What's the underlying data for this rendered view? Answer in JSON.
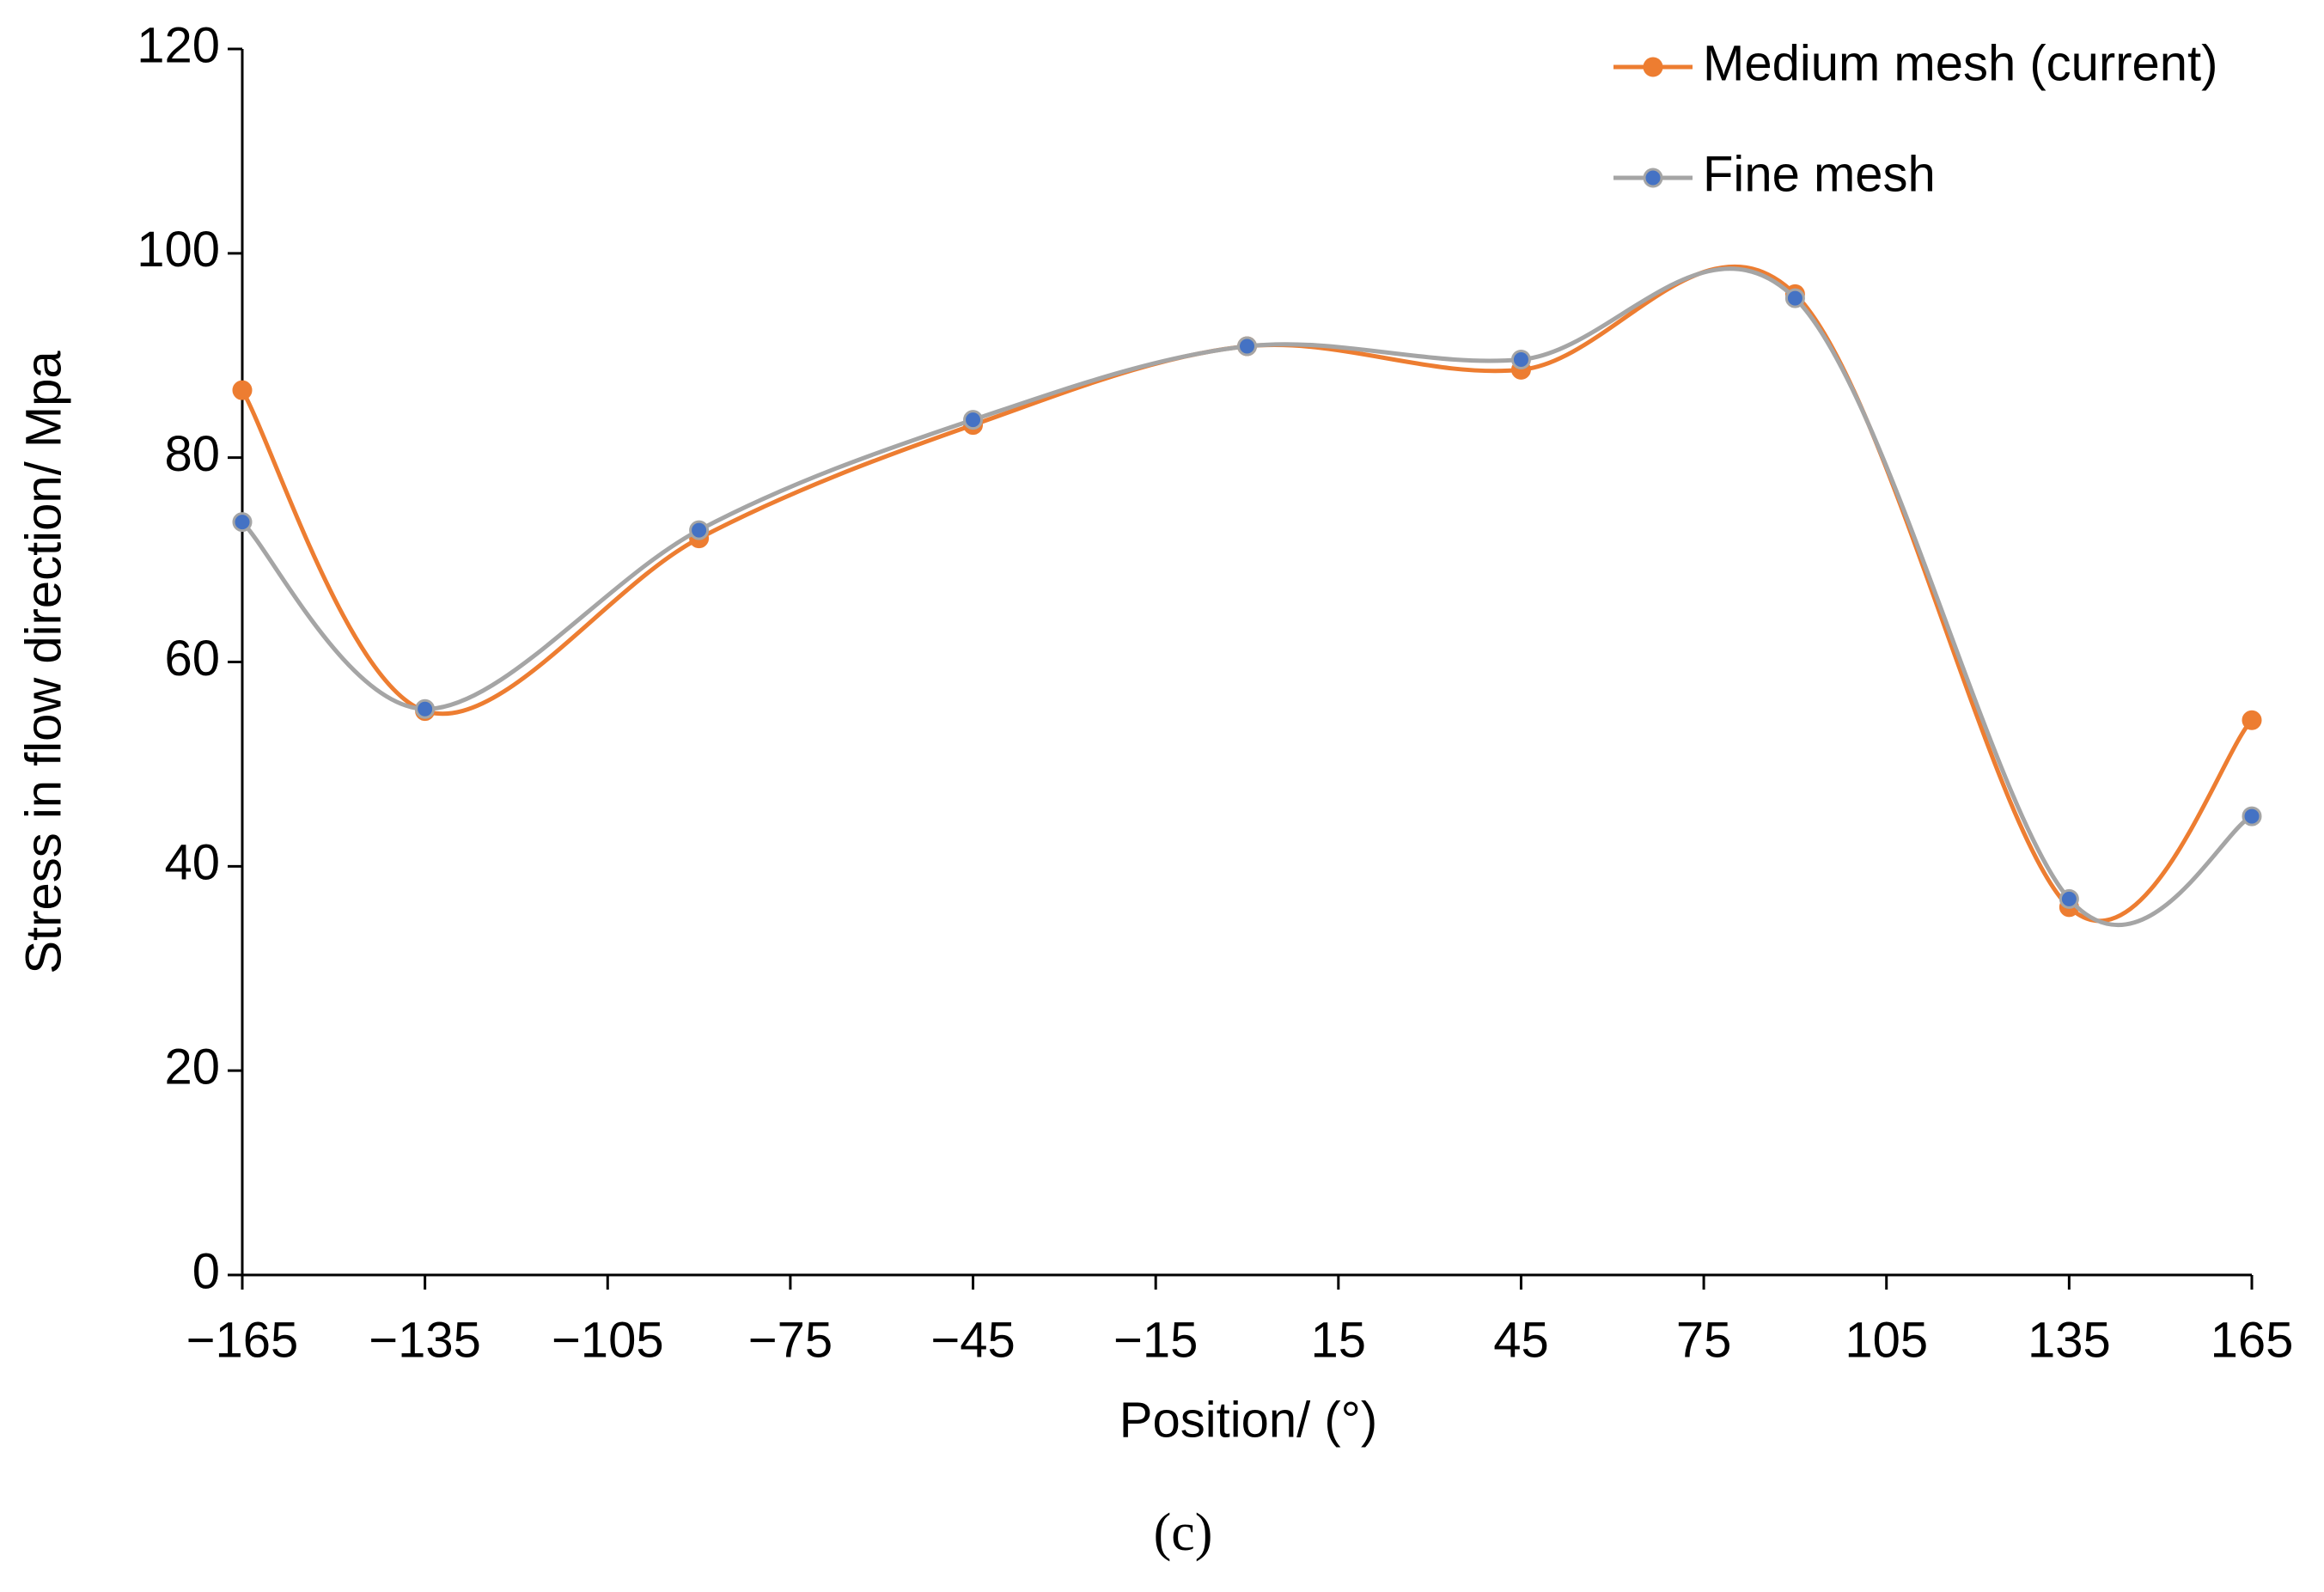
{
  "chart_data": {
    "type": "line",
    "x_label": "Position/ (°)",
    "y_label": "Stress in flow direction/ Mpa",
    "caption": "(c)",
    "x": [
      -165,
      -135,
      -90,
      -45,
      0,
      45,
      90,
      135,
      165
    ],
    "series": [
      {
        "name": "Medium mesh (current)",
        "color": "#ed7d31",
        "marker_color": "#ed7d31",
        "values": [
          86.6,
          55.2,
          72.1,
          83.2,
          90.9,
          88.6,
          96.0,
          36.0,
          54.3
        ]
      },
      {
        "name": "Fine mesh",
        "color": "#a5a5a5",
        "marker_color": "#4472c4",
        "values": [
          73.7,
          55.4,
          72.9,
          83.7,
          90.9,
          89.6,
          95.6,
          36.8,
          44.9
        ]
      }
    ],
    "xlim": [
      -165,
      165
    ],
    "xticks": [
      {
        "value": -165,
        "label": "−165"
      },
      {
        "value": -135,
        "label": "−135"
      },
      {
        "value": -105,
        "label": "−105"
      },
      {
        "value": -75,
        "label": "−75"
      },
      {
        "value": -45,
        "label": "−45"
      },
      {
        "value": -15,
        "label": "−15"
      },
      15,
      45,
      75,
      105,
      135,
      165
    ],
    "ylim": [
      0,
      120
    ],
    "yticks": [
      0,
      20,
      40,
      60,
      80,
      100,
      120
    ],
    "smooth": true,
    "legend_position": "top-right"
  }
}
